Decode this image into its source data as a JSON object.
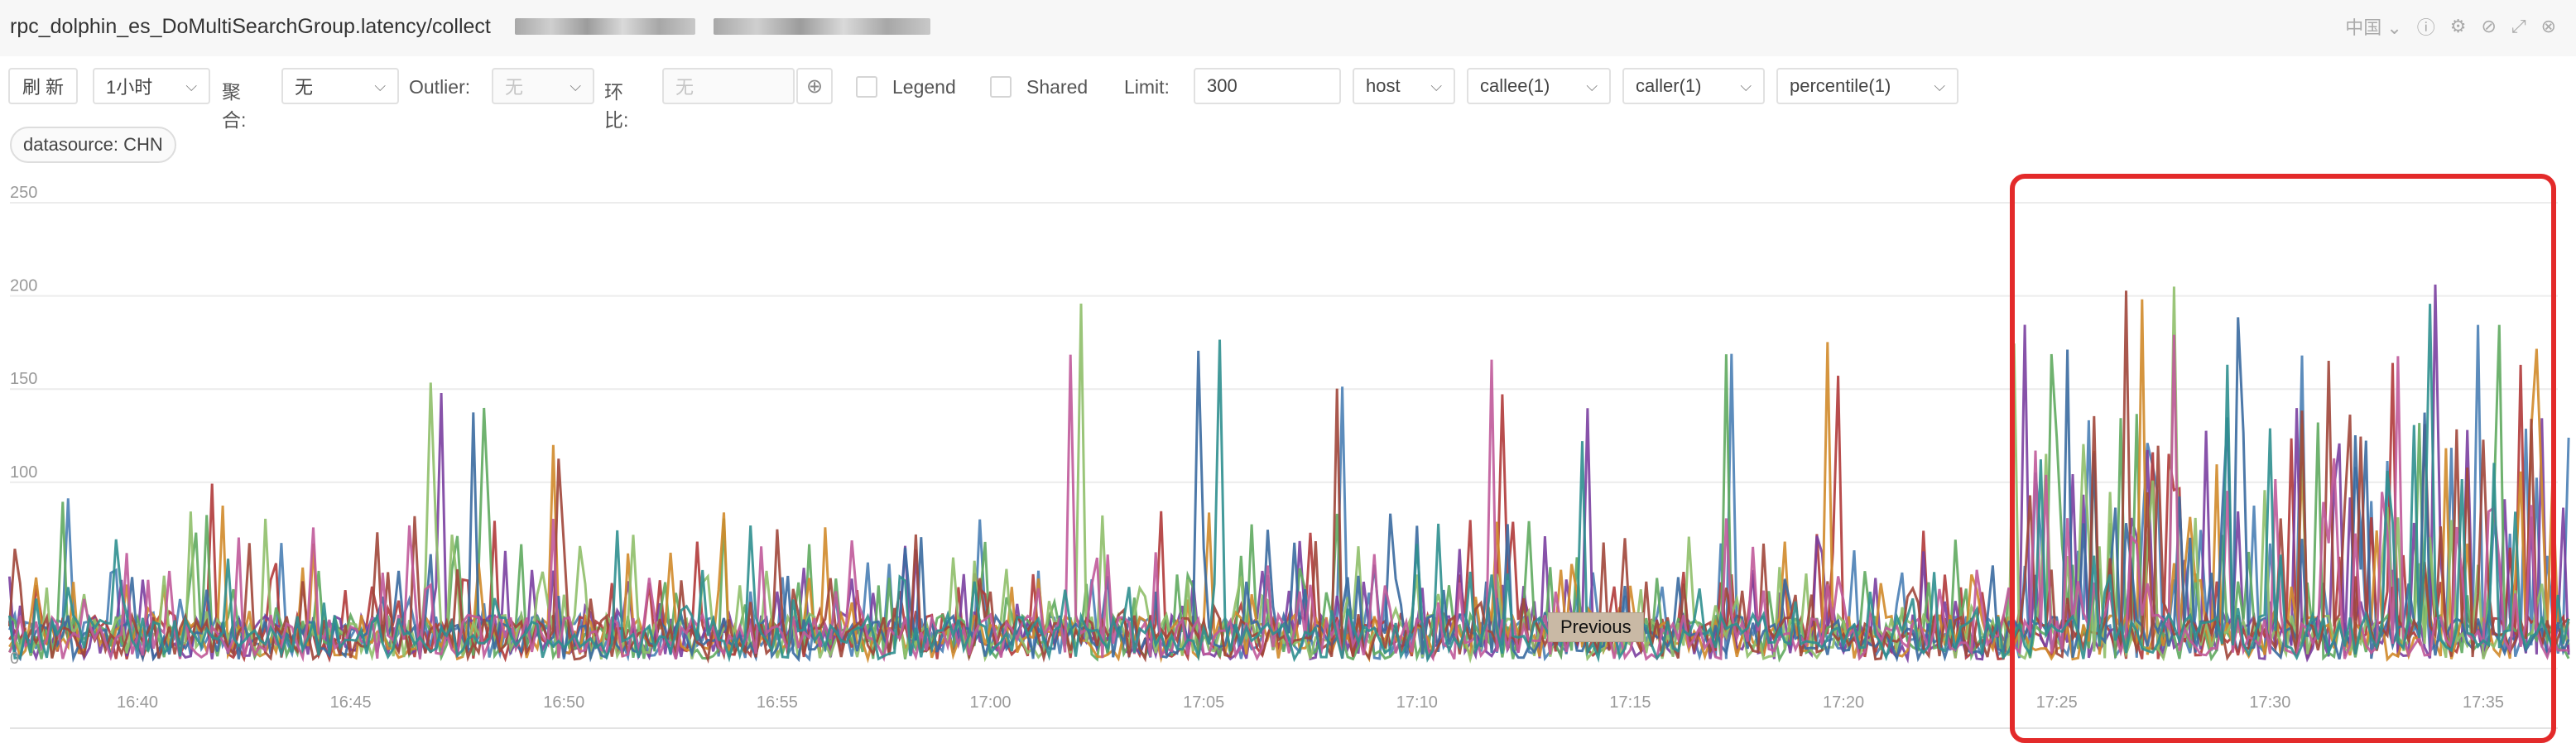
{
  "header": {
    "title": "rpc_dolphin_es_DoMultiSearchGroup.latency/collect",
    "region": "中国"
  },
  "toolbar": {
    "refresh": "刷 新",
    "time_range": "1小时",
    "agg_label": "聚合:",
    "agg_value": "无",
    "outlier_label": "Outlier:",
    "outlier_value": "无",
    "compare_label": "环比:",
    "compare_placeholder": "无",
    "legend_label": "Legend",
    "shared_label": "Shared",
    "limit_label": "Limit:",
    "limit_value": "300",
    "host": "host",
    "callee": "callee(1)",
    "caller": "caller(1)",
    "percentile": "percentile(1)"
  },
  "filter_chip": "datasource: CHN",
  "tooltip": "Previous",
  "colors": {
    "highlight": "#e32a2a",
    "series": [
      "#4a7fb5",
      "#b03a3a",
      "#7a3fa0",
      "#5faa5f",
      "#d08a2a",
      "#8fbf6a",
      "#3a6aa0",
      "#a0463a",
      "#c05a9a",
      "#2f8f8f"
    ]
  },
  "chart_data": {
    "type": "line",
    "ylim": [
      0,
      250
    ],
    "yticks": [
      "250",
      "200",
      "150",
      "100",
      "0"
    ],
    "xticks": [
      "16:40",
      "16:45",
      "16:50",
      "16:55",
      "17:00",
      "17:05",
      "17:10",
      "17:15",
      "17:20",
      "17:25",
      "17:30",
      "17:35"
    ],
    "x_range": [
      "16:37",
      "17:37"
    ],
    "series_count": 10,
    "baseline_range": [
      5,
      45
    ],
    "spikes": [
      {
        "x": "16:38",
        "y": 100
      },
      {
        "x": "16:42",
        "y": 100
      },
      {
        "x": "16:47",
        "y": 157
      },
      {
        "x": "16:48",
        "y": 148
      },
      {
        "x": "16:50",
        "y": 120
      },
      {
        "x": "17:02",
        "y": 198
      },
      {
        "x": "17:05",
        "y": 198
      },
      {
        "x": "17:08",
        "y": 158
      },
      {
        "x": "17:12",
        "y": 170
      },
      {
        "x": "17:14",
        "y": 140
      },
      {
        "x": "17:17",
        "y": 178
      },
      {
        "x": "17:20",
        "y": 178
      },
      {
        "x": "17:24",
        "y": 188
      },
      {
        "x": "17:25",
        "y": 190
      },
      {
        "x": "17:27",
        "y": 212
      },
      {
        "x": "17:28",
        "y": 205
      },
      {
        "x": "17:29",
        "y": 190
      },
      {
        "x": "17:31",
        "y": 188
      },
      {
        "x": "17:33",
        "y": 188
      },
      {
        "x": "17:34",
        "y": 212
      },
      {
        "x": "17:35",
        "y": 188
      },
      {
        "x": "17:36",
        "y": 190
      }
    ]
  }
}
